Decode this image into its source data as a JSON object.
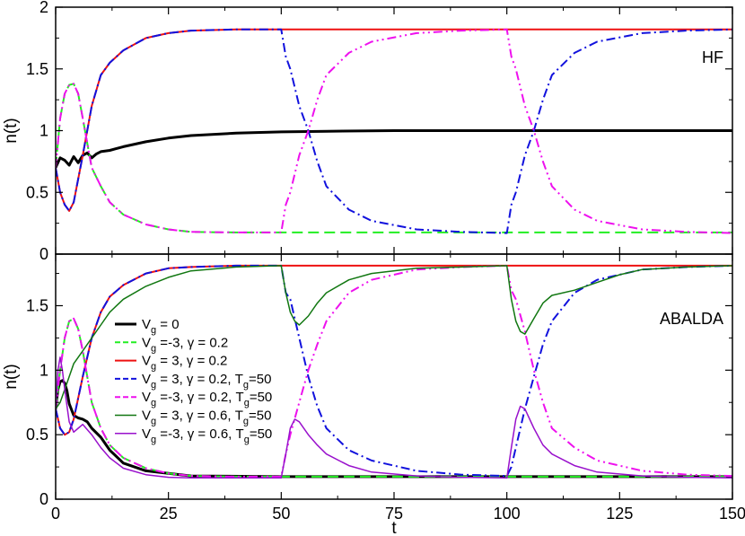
{
  "chart_data": [
    {
      "type": "line",
      "panel": "top",
      "annotation": "HF",
      "xlabel": "",
      "ylabel": "n(t)",
      "xlim": [
        0,
        150
      ],
      "ylim": [
        0,
        2
      ],
      "xticks": [
        0,
        25,
        50,
        75,
        100,
        125,
        150
      ],
      "yticks": [
        0,
        0.5,
        1,
        1.5,
        2
      ],
      "ytick_labels": [
        "0",
        "0.5",
        "1",
        "1.5",
        "2"
      ],
      "series": [
        {
          "id": "s0",
          "color": "#000000",
          "dash": "solid",
          "width": 3,
          "x": [
            0,
            1,
            2,
            3,
            4,
            5,
            6,
            7,
            8,
            9,
            10,
            12,
            15,
            20,
            25,
            30,
            40,
            50,
            60,
            75,
            100,
            150
          ],
          "y": [
            0.7,
            0.78,
            0.76,
            0.72,
            0.79,
            0.74,
            0.8,
            0.82,
            0.78,
            0.81,
            0.83,
            0.84,
            0.87,
            0.91,
            0.94,
            0.96,
            0.98,
            0.99,
            0.995,
            1.0,
            1.0,
            1.0
          ]
        },
        {
          "id": "s1",
          "color": "#22ee22",
          "dash": "dashed",
          "width": 2,
          "x": [
            0,
            1,
            2,
            3,
            4,
            5,
            6,
            8,
            10,
            12,
            15,
            20,
            25,
            30,
            40,
            50,
            100,
            150
          ],
          "y": [
            0.7,
            1.1,
            1.3,
            1.37,
            1.38,
            1.3,
            1.1,
            0.7,
            0.55,
            0.42,
            0.32,
            0.24,
            0.2,
            0.18,
            0.175,
            0.175,
            0.175,
            0.175
          ]
        },
        {
          "id": "s2",
          "color": "#ee1111",
          "dash": "solid",
          "width": 2,
          "x": [
            0,
            1,
            2,
            3,
            4,
            6,
            8,
            10,
            12,
            15,
            20,
            25,
            30,
            40,
            50,
            100,
            150
          ],
          "y": [
            0.7,
            0.5,
            0.4,
            0.35,
            0.42,
            0.8,
            1.2,
            1.45,
            1.55,
            1.65,
            1.75,
            1.79,
            1.81,
            1.82,
            1.82,
            1.82,
            1.82
          ]
        },
        {
          "id": "s3",
          "color": "#1111dd",
          "dash": "dashdot",
          "width": 2,
          "x": [
            0,
            1,
            2,
            3,
            4,
            6,
            8,
            10,
            12,
            15,
            20,
            25,
            30,
            40,
            50,
            51,
            52,
            54,
            56,
            58,
            60,
            65,
            70,
            80,
            90,
            100,
            101,
            102,
            104,
            106,
            108,
            110,
            115,
            120,
            130,
            140,
            150
          ],
          "y": [
            0.7,
            0.5,
            0.4,
            0.35,
            0.42,
            0.8,
            1.2,
            1.45,
            1.55,
            1.65,
            1.75,
            1.79,
            1.81,
            1.82,
            1.82,
            1.6,
            1.5,
            1.2,
            1.0,
            0.75,
            0.55,
            0.36,
            0.27,
            0.2,
            0.18,
            0.17,
            0.4,
            0.5,
            0.8,
            1.0,
            1.25,
            1.45,
            1.63,
            1.72,
            1.79,
            1.81,
            1.82
          ]
        },
        {
          "id": "s4",
          "color": "#ee11ee",
          "dash": "dashdotdot",
          "width": 2,
          "x": [
            0,
            1,
            2,
            3,
            4,
            5,
            6,
            8,
            10,
            12,
            15,
            20,
            25,
            30,
            40,
            50,
            51,
            52,
            54,
            56,
            58,
            60,
            65,
            70,
            80,
            90,
            100,
            101,
            102,
            104,
            106,
            108,
            110,
            115,
            120,
            130,
            140,
            150
          ],
          "y": [
            0.7,
            1.1,
            1.3,
            1.37,
            1.38,
            1.3,
            1.1,
            0.7,
            0.55,
            0.42,
            0.32,
            0.24,
            0.2,
            0.18,
            0.175,
            0.175,
            0.4,
            0.5,
            0.8,
            1.0,
            1.25,
            1.45,
            1.63,
            1.72,
            1.79,
            1.81,
            1.82,
            1.6,
            1.5,
            1.2,
            1.0,
            0.75,
            0.55,
            0.36,
            0.27,
            0.2,
            0.18,
            0.17
          ]
        }
      ]
    },
    {
      "type": "line",
      "panel": "bottom",
      "annotation": "ABALDA",
      "xlabel": "t",
      "ylabel": "n(t)",
      "xlim": [
        0,
        150
      ],
      "ylim": [
        0,
        1.9
      ],
      "xticks": [
        0,
        25,
        50,
        75,
        100,
        125,
        150
      ],
      "xtick_labels": [
        "0",
        "25",
        "50",
        "75",
        "100",
        "125",
        "150"
      ],
      "yticks": [
        0,
        0.5,
        1,
        1.5
      ],
      "ytick_labels": [
        "0",
        "0.5",
        "1",
        "1.5"
      ],
      "legend": {
        "placement": "center-left",
        "entries": [
          {
            "series": "b0",
            "label": "V",
            "sub": "g",
            "rest": " = 0"
          },
          {
            "series": "b1",
            "label": "V",
            "sub": "g",
            "rest": " =-3, γ = 0.2"
          },
          {
            "series": "b2",
            "label": "V",
            "sub": "g",
            "rest": " = 3, γ = 0.2"
          },
          {
            "series": "b3",
            "label": "V",
            "sub": "g",
            "rest": " = 3, γ = 0.2,  T",
            "sub2": "g",
            "rest2": "=50"
          },
          {
            "series": "b4",
            "label": "V",
            "sub": "g",
            "rest": " =-3, γ = 0.2,  T",
            "sub2": "g",
            "rest2": "=50"
          },
          {
            "series": "b5",
            "label": "V",
            "sub": "g",
            "rest": " = 3, γ = 0.6,  T",
            "sub2": "g",
            "rest2": "=50"
          },
          {
            "series": "b6",
            "label": "V",
            "sub": "g",
            "rest": " =-3, γ = 0.6,  T",
            "sub2": "g",
            "rest2": "=50"
          }
        ]
      },
      "series": [
        {
          "id": "b0",
          "color": "#000000",
          "dash": "solid",
          "width": 3,
          "x": [
            0,
            0.5,
            1,
            1.5,
            2,
            2.5,
            3,
            4,
            5,
            6,
            7,
            8,
            10,
            12,
            15,
            20,
            25,
            30,
            50,
            100,
            150
          ],
          "y": [
            0.7,
            0.85,
            0.91,
            0.92,
            0.9,
            0.84,
            0.74,
            0.65,
            0.63,
            0.62,
            0.6,
            0.55,
            0.48,
            0.38,
            0.28,
            0.22,
            0.2,
            0.18,
            0.175,
            0.175,
            0.175
          ]
        },
        {
          "id": "b1",
          "color": "#22ee22",
          "dash": "dashed",
          "width": 2,
          "x": [
            0,
            1,
            2,
            3,
            4,
            5,
            6,
            8,
            10,
            12,
            15,
            20,
            25,
            30,
            40,
            50,
            100,
            150
          ],
          "y": [
            0.7,
            1.0,
            1.25,
            1.38,
            1.4,
            1.32,
            1.15,
            0.75,
            0.55,
            0.42,
            0.32,
            0.24,
            0.2,
            0.18,
            0.175,
            0.175,
            0.175,
            0.175
          ]
        },
        {
          "id": "b2",
          "color": "#ee1111",
          "dash": "solid",
          "width": 2,
          "x": [
            0,
            1,
            2,
            3,
            4,
            6,
            8,
            10,
            12,
            15,
            20,
            25,
            30,
            40,
            50,
            100,
            150
          ],
          "y": [
            0.7,
            0.55,
            0.5,
            0.52,
            0.62,
            0.95,
            1.25,
            1.45,
            1.57,
            1.66,
            1.75,
            1.79,
            1.8,
            1.81,
            1.81,
            1.81,
            1.81
          ]
        },
        {
          "id": "b3",
          "color": "#1111dd",
          "dash": "dashdot",
          "width": 2,
          "x": [
            0,
            1,
            2,
            3,
            4,
            6,
            8,
            10,
            12,
            15,
            20,
            25,
            30,
            40,
            50,
            51,
            52,
            54,
            56,
            58,
            60,
            65,
            70,
            80,
            90,
            100,
            101,
            102,
            104,
            106,
            108,
            110,
            115,
            120,
            130,
            140,
            150
          ],
          "y": [
            0.7,
            0.55,
            0.5,
            0.52,
            0.62,
            0.95,
            1.25,
            1.45,
            1.57,
            1.66,
            1.75,
            1.79,
            1.8,
            1.81,
            1.81,
            1.6,
            1.55,
            1.25,
            0.95,
            0.72,
            0.55,
            0.38,
            0.3,
            0.22,
            0.19,
            0.18,
            0.25,
            0.4,
            0.7,
            0.95,
            1.2,
            1.38,
            1.6,
            1.7,
            1.78,
            1.8,
            1.81
          ]
        },
        {
          "id": "b4",
          "color": "#ee11ee",
          "dash": "dashdotdot",
          "width": 2,
          "x": [
            0,
            1,
            2,
            3,
            4,
            5,
            6,
            8,
            10,
            12,
            15,
            20,
            25,
            30,
            40,
            50,
            51,
            52,
            54,
            56,
            58,
            60,
            65,
            70,
            80,
            90,
            100,
            101,
            102,
            104,
            106,
            108,
            110,
            115,
            120,
            130,
            140,
            150
          ],
          "y": [
            0.7,
            1.0,
            1.25,
            1.38,
            1.4,
            1.32,
            1.15,
            0.75,
            0.55,
            0.42,
            0.32,
            0.24,
            0.2,
            0.18,
            0.175,
            0.175,
            0.35,
            0.5,
            0.75,
            1.0,
            1.2,
            1.38,
            1.6,
            1.7,
            1.78,
            1.8,
            1.81,
            1.62,
            1.55,
            1.3,
            1.0,
            0.75,
            0.55,
            0.4,
            0.3,
            0.22,
            0.19,
            0.18
          ]
        },
        {
          "id": "b5",
          "color": "#117711",
          "dash": "solid",
          "width": 1.5,
          "x": [
            0,
            1,
            2,
            3,
            4,
            6,
            8,
            10,
            12,
            15,
            20,
            25,
            30,
            40,
            50,
            51,
            52,
            53,
            54,
            56,
            58,
            60,
            65,
            70,
            80,
            90,
            100,
            101,
            102,
            103,
            104,
            106,
            108,
            110,
            115,
            120,
            125,
            130,
            140,
            150
          ],
          "y": [
            0.7,
            0.75,
            0.85,
            0.95,
            1.05,
            1.15,
            1.25,
            1.35,
            1.45,
            1.55,
            1.65,
            1.72,
            1.77,
            1.8,
            1.81,
            1.6,
            1.45,
            1.38,
            1.35,
            1.42,
            1.52,
            1.6,
            1.7,
            1.75,
            1.79,
            1.8,
            1.81,
            1.55,
            1.38,
            1.3,
            1.28,
            1.4,
            1.52,
            1.58,
            1.62,
            1.68,
            1.74,
            1.78,
            1.8,
            1.81
          ]
        },
        {
          "id": "b6",
          "color": "#9911cc",
          "dash": "solid",
          "width": 1.5,
          "x": [
            0,
            0.5,
            1,
            1.5,
            2,
            3,
            4,
            5,
            6,
            8,
            10,
            12,
            15,
            20,
            25,
            30,
            50,
            51,
            52,
            53,
            54,
            56,
            58,
            60,
            65,
            70,
            80,
            90,
            100,
            101,
            102,
            103,
            104,
            106,
            108,
            110,
            115,
            120,
            130,
            140,
            150
          ],
          "y": [
            0.7,
            1.0,
            1.1,
            1.0,
            0.85,
            0.6,
            0.52,
            0.55,
            0.58,
            0.5,
            0.4,
            0.32,
            0.24,
            0.19,
            0.17,
            0.165,
            0.165,
            0.35,
            0.55,
            0.62,
            0.6,
            0.5,
            0.42,
            0.35,
            0.26,
            0.21,
            0.18,
            0.17,
            0.165,
            0.4,
            0.62,
            0.72,
            0.7,
            0.55,
            0.42,
            0.35,
            0.26,
            0.21,
            0.18,
            0.17,
            0.165
          ]
        }
      ]
    }
  ]
}
